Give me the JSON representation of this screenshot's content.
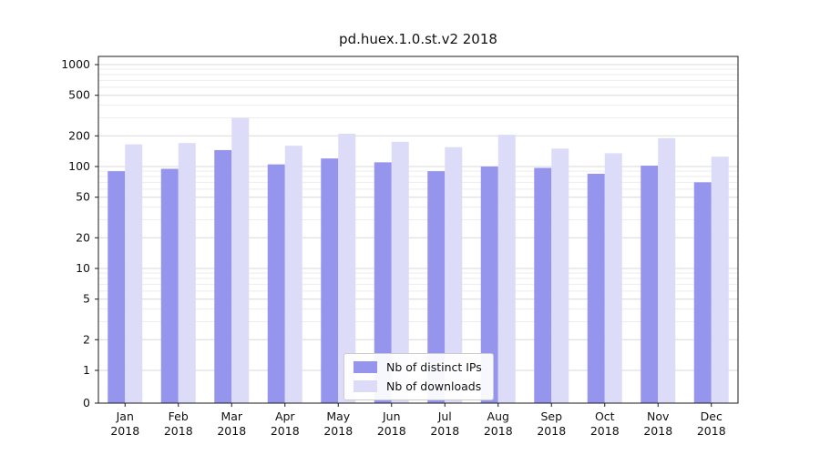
{
  "title": "pd.huex.1.0.st.v2 2018",
  "chart_data": {
    "type": "bar",
    "scale": "symlog",
    "title": "pd.huex.1.0.st.v2 2018",
    "categories": [
      "Jan",
      "Feb",
      "Mar",
      "Apr",
      "May",
      "Jun",
      "Jul",
      "Aug",
      "Sep",
      "Oct",
      "Nov",
      "Dec"
    ],
    "category_year": "2018",
    "series": [
      {
        "name": "Nb of distinct IPs",
        "color": "#9595ee",
        "values": [
          90,
          95,
          145,
          105,
          120,
          110,
          90,
          100,
          97,
          85,
          102,
          70
        ]
      },
      {
        "name": "Nb of downloads",
        "color": "#dcdcf8",
        "values": [
          165,
          170,
          300,
          160,
          210,
          175,
          155,
          205,
          150,
          135,
          190,
          125
        ]
      }
    ],
    "yticks": [
      0,
      1,
      2,
      5,
      10,
      20,
      50,
      100,
      200,
      500,
      1000
    ],
    "ylim": [
      0,
      1000
    ],
    "xlabel": "",
    "ylabel": "",
    "grid": "on",
    "legend_position": "lower center"
  }
}
